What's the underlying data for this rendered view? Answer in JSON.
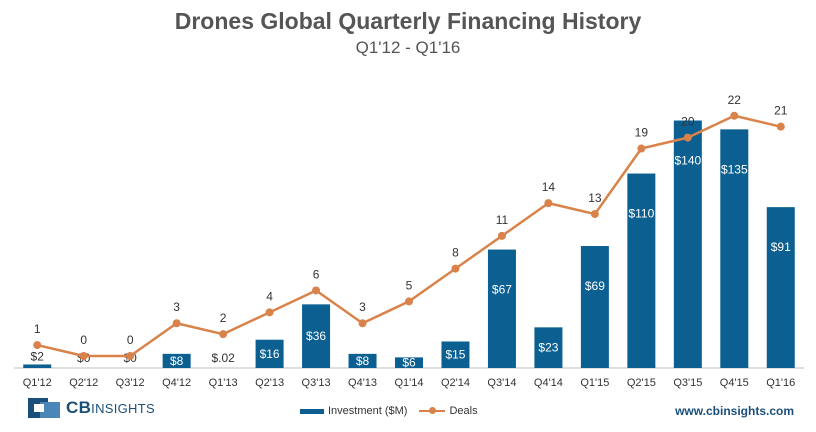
{
  "header": {
    "title": "Drones Global Quarterly Financing History",
    "subtitle": "Q1'12 - Q1'16"
  },
  "chart_data": {
    "type": "bar",
    "title": "Drones Global Quarterly Financing History",
    "subtitle": "Q1'12 - Q1'16",
    "categories": [
      "Q1'12",
      "Q2'12",
      "Q3'12",
      "Q4'12",
      "Q1'13",
      "Q2'13",
      "Q3'13",
      "Q4'13",
      "Q1'14",
      "Q2'14",
      "Q3'14",
      "Q4'14",
      "Q1'15",
      "Q2'15",
      "Q3'15",
      "Q4'15",
      "Q1'16"
    ],
    "series": [
      {
        "name": "Investment ($M)",
        "type": "bar",
        "color": "#0b5f91",
        "values": [
          2,
          0,
          0,
          8,
          0.02,
          16,
          36,
          8,
          6,
          15,
          67,
          23,
          69,
          110,
          140,
          135,
          91
        ],
        "labels": [
          "$2",
          "$0",
          "$0",
          "$8",
          "$.02",
          "$16",
          "$36",
          "$8",
          "$6",
          "$15",
          "$67",
          "$23",
          "$69",
          "$110",
          "$140",
          "$135",
          "$91"
        ]
      },
      {
        "name": "Deals",
        "type": "line",
        "color": "#d9824a",
        "values": [
          1,
          0,
          0,
          3,
          2,
          4,
          6,
          3,
          5,
          8,
          11,
          14,
          13,
          19,
          20,
          22,
          21
        ]
      }
    ],
    "ylim_investment": [
      0,
      155
    ],
    "ylim_deals": [
      0,
      25
    ],
    "grid": false,
    "legend": "bottom-center"
  },
  "legend": {
    "bar_label": "Investment ($M)",
    "line_label": "Deals"
  },
  "footer": {
    "logo_text": "CB",
    "logo_subtext": "INSIGHTS",
    "url": "www.cbinsights.com"
  }
}
